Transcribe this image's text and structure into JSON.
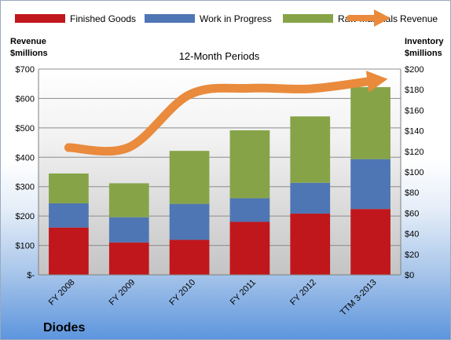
{
  "chart_data": {
    "type": "bar",
    "stacked": true,
    "title": "12-Month Periods",
    "company": "Diodes",
    "categories": [
      "FY 2008",
      "FY 2009",
      "FY 2010",
      "FY 2011",
      "FY 2012",
      "TTM 3-2013"
    ],
    "y_left": {
      "label_line1": "Revenue",
      "label_line2": "$millions",
      "range": [
        0,
        700
      ],
      "ticks": [
        0,
        100,
        200,
        300,
        400,
        500,
        600,
        700
      ],
      "tick_labels": [
        "$-",
        "$100",
        "$200",
        "$300",
        "$400",
        "$500",
        "$600",
        "$700"
      ]
    },
    "y_right": {
      "label_line1": "Inventory",
      "label_line2": "$millions",
      "range": [
        0,
        200
      ],
      "ticks": [
        0,
        20,
        40,
        60,
        80,
        100,
        120,
        140,
        160,
        180,
        200
      ],
      "tick_labels": [
        "$0",
        "$20",
        "$40",
        "$60",
        "$80",
        "$100",
        "$120",
        "$140",
        "$160",
        "$180",
        "$200"
      ]
    },
    "series": [
      {
        "name": "Finished Goods",
        "kind": "bar",
        "axis": "right",
        "color": "#c0171c",
        "values": [
          46,
          31.5,
          34,
          51.5,
          59.5,
          64
        ]
      },
      {
        "name": "Work in Progress",
        "kind": "bar",
        "axis": "right",
        "color": "#4f76b4",
        "values": [
          23.5,
          24.5,
          35,
          23,
          30,
          48.5
        ]
      },
      {
        "name": "Raw Materials",
        "kind": "bar",
        "axis": "right",
        "color": "#86a447",
        "values": [
          29,
          33,
          51.5,
          66,
          64.5,
          70
        ]
      },
      {
        "name": "Revenue",
        "kind": "line-arrow",
        "axis": "left",
        "color": "#e98a3c",
        "values": [
          433,
          434,
          613,
          635,
          633,
          659
        ]
      }
    ],
    "grid": true,
    "legend_position": "top"
  }
}
